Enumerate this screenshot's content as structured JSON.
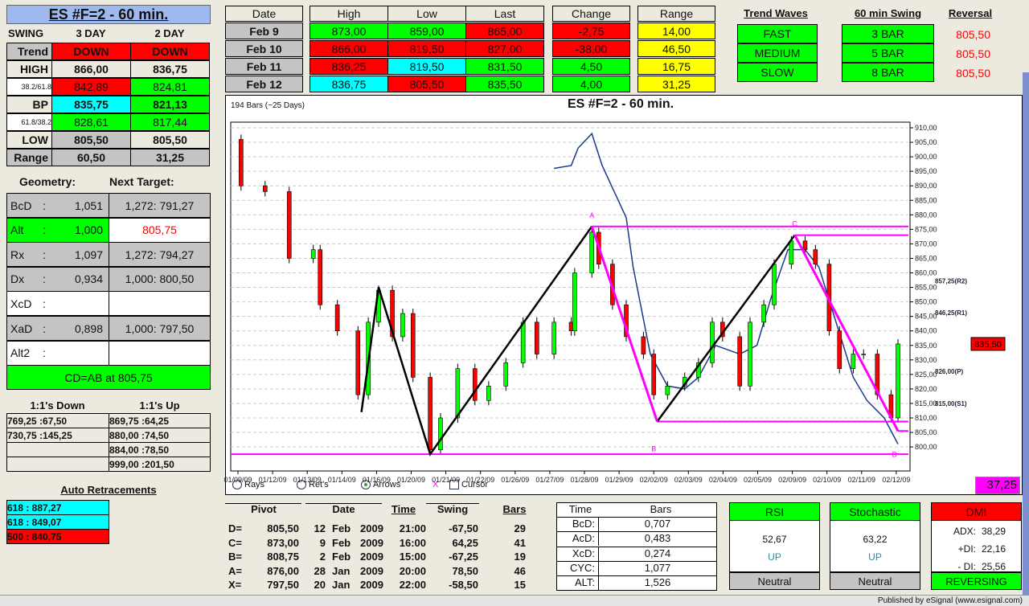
{
  "colors": {
    "green": "#00ff00",
    "red": "#ff0000",
    "cyan": "#00ffff",
    "yellow": "#ffff00",
    "gray": "#c4c4c4",
    "white": "#ffffff",
    "magenta": "#ff00ff",
    "blue": "#1a3a8a"
  },
  "title": "ES #F=2 - 60 min.",
  "swing": {
    "label": "SWING",
    "col1": "3 DAY",
    "col2": "2 DAY",
    "rows": [
      {
        "label": "Trend",
        "v1": "DOWN",
        "v2": "DOWN",
        "lbg": "gray0",
        "c1": "red",
        "c2": "red",
        "small": false
      },
      {
        "label": "HIGH",
        "v1": "866,00",
        "v2": "836,75",
        "c1": "none",
        "c2": "none",
        "small": false
      },
      {
        "label": "38.2/61.8",
        "v1": "842,89",
        "v2": "824,81",
        "c1": "red",
        "c2": "green",
        "small": true
      },
      {
        "label": "BP",
        "v1": "835,75",
        "v2": "821,13",
        "c1": "cyan",
        "c2": "green",
        "small": false
      },
      {
        "label": "61.8/38.2",
        "v1": "828,61",
        "v2": "817,44",
        "c1": "green",
        "c2": "green",
        "small": true
      },
      {
        "label": "LOW",
        "v1": "805,50",
        "v2": "805,50",
        "c1": "gray",
        "c2": "none",
        "small": false
      },
      {
        "label": "Range",
        "v1": "60,50",
        "v2": "31,25",
        "c1": "gray",
        "c2": "gray",
        "small": false
      }
    ]
  },
  "geometry": {
    "label": "Geometry:",
    "target_label": "Next Target:",
    "rows": [
      {
        "name": "BcD",
        "ratio": "1,051",
        "target": "1,272: 791,27",
        "bg": "gray",
        "tbg": "gray"
      },
      {
        "name": "Alt",
        "ratio": "1,000",
        "target": "805,75",
        "bg": "green",
        "tbg": "white",
        "tred": true
      },
      {
        "name": "Rx",
        "ratio": "1,097",
        "target": "1,272: 794,27",
        "bg": "gray",
        "tbg": "gray"
      },
      {
        "name": "Dx",
        "ratio": "0,934",
        "target": "1,000: 800,50",
        "bg": "gray",
        "tbg": "gray"
      },
      {
        "name": "XcD",
        "ratio": "",
        "target": "",
        "bg": "white",
        "tbg": "white"
      },
      {
        "name": "XaD",
        "ratio": "0,898",
        "target": "1,000: 797,50",
        "bg": "gray",
        "tbg": "gray"
      },
      {
        "name": "Alt2",
        "ratio": "",
        "target": "",
        "bg": "white",
        "tbg": "white"
      }
    ],
    "summary": "CD=AB at 805,75"
  },
  "one_to_one": {
    "down_label": "1:1's Down",
    "up_label": "1:1's Up",
    "down": [
      "769,25 :67,50",
      "730,75 :145,25",
      "",
      ""
    ],
    "up": [
      "869,75 :64,25",
      "880,00 :74,50",
      "884,00 :78,50",
      "999,00 :201,50"
    ]
  },
  "auto_retracements": {
    "label": "Auto Retracements",
    "items": [
      {
        "text": "618 : 887,27",
        "color": "cyan"
      },
      {
        "text": "618 : 849,07",
        "color": "cyan"
      },
      {
        "text": "500 : 840,75",
        "color": "red"
      }
    ]
  },
  "prices": {
    "headers": [
      "Date",
      "High",
      "Low",
      "Last",
      "Change",
      "Range"
    ],
    "rows": [
      {
        "date": "Feb  9",
        "high": "873,00",
        "low": "859,00",
        "last": "865,00",
        "change": "-2,75",
        "range": "14,00",
        "ch": "green",
        "cl": "green",
        "cla": "red",
        "cc": "red"
      },
      {
        "date": "Feb  10",
        "high": "866,00",
        "low": "819,50",
        "last": "827,00",
        "change": "-38,00",
        "range": "46,50",
        "ch": "red",
        "cl": "red",
        "cla": "red",
        "cc": "red"
      },
      {
        "date": "Feb  11",
        "high": "836,25",
        "low": "819,50",
        "last": "831,50",
        "change": "4,50",
        "range": "16,75",
        "ch": "red",
        "cl": "cyan",
        "cla": "green",
        "cc": "green"
      },
      {
        "date": "Feb  12",
        "high": "836,75",
        "low": "805,50",
        "last": "835,50",
        "change": "4,00",
        "range": "31,25",
        "ch": "cyan",
        "cl": "red",
        "cla": "green",
        "cc": "green"
      }
    ]
  },
  "trend_waves": {
    "label": "Trend Waves",
    "items": [
      "FAST",
      "MEDIUM",
      "SLOW"
    ]
  },
  "swing60": {
    "label": "60 min Swing",
    "items": [
      "3 BAR",
      "5 BAR",
      "8 BAR"
    ]
  },
  "reversal": {
    "label": "Reversal",
    "values": [
      "805,50",
      "805,50",
      "805,50"
    ]
  },
  "chart": {
    "bars_label": "194 Bars (~25 Days)",
    "title": "ES #F=2 - 60 min.",
    "last_price": "835,50",
    "box_value": "37,25",
    "controls": {
      "rays": "Rays",
      "rets": "Ret's",
      "arrows": "Arrows",
      "x": "X",
      "cursor": "Cursor",
      "selected": "arrows"
    },
    "levels": [
      {
        "text": "857,25(R2)",
        "price": 857.25
      },
      {
        "text": "846,25(R1)",
        "price": 846.25
      },
      {
        "text": "826,00(P)",
        "price": 826
      },
      {
        "text": "815,00(S1)",
        "price": 815
      }
    ],
    "pivot_marks": [
      {
        "text": "A",
        "bar": 105,
        "price": 879
      },
      {
        "text": "B",
        "bar": 123,
        "price": 798.5
      },
      {
        "text": "C",
        "bar": 164,
        "price": 876
      },
      {
        "text": "D",
        "bar": 193,
        "price": 796.5
      }
    ]
  },
  "chart_data": {
    "type": "candlestick",
    "ylim": [
      797,
      912
    ],
    "y_ticks": [
      "910,00",
      "905,00",
      "900,00",
      "895,00",
      "890,00",
      "885,00",
      "880,00",
      "875,00",
      "870,00",
      "865,00",
      "860,00",
      "855,00",
      "850,00",
      "845,00",
      "840,00",
      "835,00",
      "830,00",
      "825,00",
      "820,00",
      "815,00",
      "810,00",
      "805,00",
      "800,00"
    ],
    "x_ticks": [
      "01/09/09",
      "01/12/09",
      "01/13/09",
      "01/14/09",
      "01/16/09",
      "01/20/09",
      "01/21/09",
      "01/22/09",
      "01/26/09",
      "01/27/09",
      "01/28/09",
      "01/29/09",
      "02/02/09",
      "02/03/09",
      "02/04/09",
      "02/05/09",
      "02/09/09",
      "02/10/09",
      "02/11/09",
      "02/12/09"
    ],
    "closes": [
      [
        0,
        906
      ],
      [
        3,
        890
      ],
      [
        10,
        888
      ],
      [
        17,
        865
      ],
      [
        24,
        868
      ],
      [
        26,
        849
      ],
      [
        31,
        840
      ],
      [
        37,
        818
      ],
      [
        40,
        843
      ],
      [
        43,
        854
      ],
      [
        47,
        838
      ],
      [
        50,
        846
      ],
      [
        53,
        824
      ],
      [
        58,
        799
      ],
      [
        61,
        810
      ],
      [
        66,
        827
      ],
      [
        71,
        816
      ],
      [
        75,
        821
      ],
      [
        80,
        829
      ],
      [
        85,
        843
      ],
      [
        89,
        832
      ],
      [
        94,
        843
      ],
      [
        99,
        840
      ],
      [
        100,
        860
      ],
      [
        105,
        874
      ],
      [
        107,
        863
      ],
      [
        111,
        849
      ],
      [
        115,
        838
      ],
      [
        120,
        832
      ],
      [
        123,
        818
      ],
      [
        127,
        821
      ],
      [
        132,
        824
      ],
      [
        136,
        829
      ],
      [
        140,
        843
      ],
      [
        143,
        838
      ],
      [
        148,
        821
      ],
      [
        151,
        843
      ],
      [
        155,
        849
      ],
      [
        158,
        863
      ],
      [
        163,
        871
      ],
      [
        167,
        868
      ],
      [
        170,
        863
      ],
      [
        174,
        840
      ],
      [
        177,
        827
      ],
      [
        181,
        832
      ],
      [
        184,
        832
      ],
      [
        188,
        818
      ],
      [
        192,
        810
      ],
      [
        194,
        835.5
      ]
    ],
    "indicator_line": [
      [
        94,
        896
      ],
      [
        99,
        897
      ],
      [
        101,
        903
      ],
      [
        105,
        908
      ],
      [
        108,
        897
      ],
      [
        115,
        879
      ],
      [
        117,
        862
      ],
      [
        122,
        832
      ],
      [
        127,
        821
      ],
      [
        132,
        820
      ],
      [
        136,
        824
      ],
      [
        141,
        835
      ],
      [
        148,
        832
      ],
      [
        153,
        835
      ],
      [
        157,
        851
      ],
      [
        162,
        868
      ],
      [
        167,
        868
      ],
      [
        171,
        862
      ],
      [
        176,
        843
      ],
      [
        181,
        824
      ],
      [
        185,
        816
      ],
      [
        190,
        810
      ],
      [
        194,
        801
      ]
    ],
    "swing_lines_black": [
      [
        [
          38,
          812
        ],
        [
          43,
          855
        ],
        [
          58,
          797.5
        ],
        [
          105,
          876
        ]
      ],
      [
        [
          124,
          808.75
        ],
        [
          164,
          873
        ]
      ]
    ],
    "swing_lines_magenta": [
      [
        [
          105,
          876
        ],
        [
          124,
          808.75
        ]
      ],
      [
        [
          164,
          873
        ],
        [
          194,
          805.5
        ]
      ]
    ],
    "horizontal_levels": [
      {
        "price": 876,
        "from": 105
      },
      {
        "price": 873,
        "from": 164
      },
      {
        "price": 808.75,
        "from": 124
      },
      {
        "price": 805.5,
        "from": 194
      },
      {
        "price": 797.5,
        "from": 0
      }
    ]
  },
  "pivots": {
    "headers": [
      "Pivot",
      "Date",
      "Time",
      "Swing",
      "Bars"
    ],
    "rows": [
      {
        "p": "D=",
        "v": "805,50",
        "d": "12",
        "m": "Feb",
        "y": "2009",
        "t": "21:00",
        "s": "-67,50",
        "b": "29"
      },
      {
        "p": "C=",
        "v": "873,00",
        "d": "9",
        "m": "Feb",
        "y": "2009",
        "t": "16:00",
        "s": "64,25",
        "b": "41"
      },
      {
        "p": "B=",
        "v": "808,75",
        "d": "2",
        "m": "Feb",
        "y": "2009",
        "t": "15:00",
        "s": "-67,25",
        "b": "19"
      },
      {
        "p": "A=",
        "v": "876,00",
        "d": "28",
        "m": "Jan",
        "y": "2009",
        "t": "20:00",
        "s": "78,50",
        "b": "46"
      },
      {
        "p": "X=",
        "v": "797,50",
        "d": "20",
        "m": "Jan",
        "y": "2009",
        "t": "22:00",
        "s": "-58,50",
        "b": "15"
      }
    ]
  },
  "time_bars": {
    "headers": [
      "Time",
      "Bars"
    ],
    "rows": [
      [
        "BcD:",
        "0,707"
      ],
      [
        "AcD:",
        "0,483"
      ],
      [
        "XcD:",
        "0,274"
      ],
      [
        "CYC:",
        "1,077"
      ],
      [
        "ALT:",
        "1,526"
      ]
    ]
  },
  "rsi": {
    "label": "RSI",
    "value": "52,67",
    "dir": "UP",
    "status": "Neutral"
  },
  "stochastic": {
    "label": "Stochastic",
    "value": "63,22",
    "dir": "UP",
    "status": "Neutral"
  },
  "dmi": {
    "label": "DMI",
    "adx_label": "ADX:",
    "adx": "38,29",
    "pdi_label": "+DI:",
    "pdi": "22,16",
    "mdi_label": "- DI:",
    "mdi": "25,56",
    "status": "REVERSING"
  },
  "footer": "Published by eSignal (www.esignal.com)"
}
